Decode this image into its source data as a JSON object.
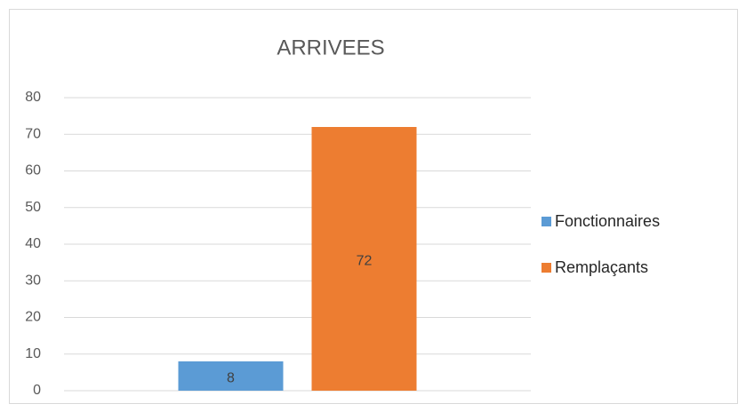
{
  "chart_data": {
    "type": "bar",
    "title": "ARRIVEES",
    "categories": [
      null
    ],
    "series": [
      {
        "name": "Fonctionnaires",
        "color": "#5b9bd5",
        "values": [
          8
        ]
      },
      {
        "name": "Remplaçants",
        "color": "#ed7d31",
        "values": [
          72
        ]
      }
    ],
    "ylim": [
      0,
      80
    ],
    "yticks": [
      0,
      10,
      20,
      30,
      40,
      50,
      60,
      70,
      80
    ],
    "grid": true,
    "legend": "right"
  }
}
